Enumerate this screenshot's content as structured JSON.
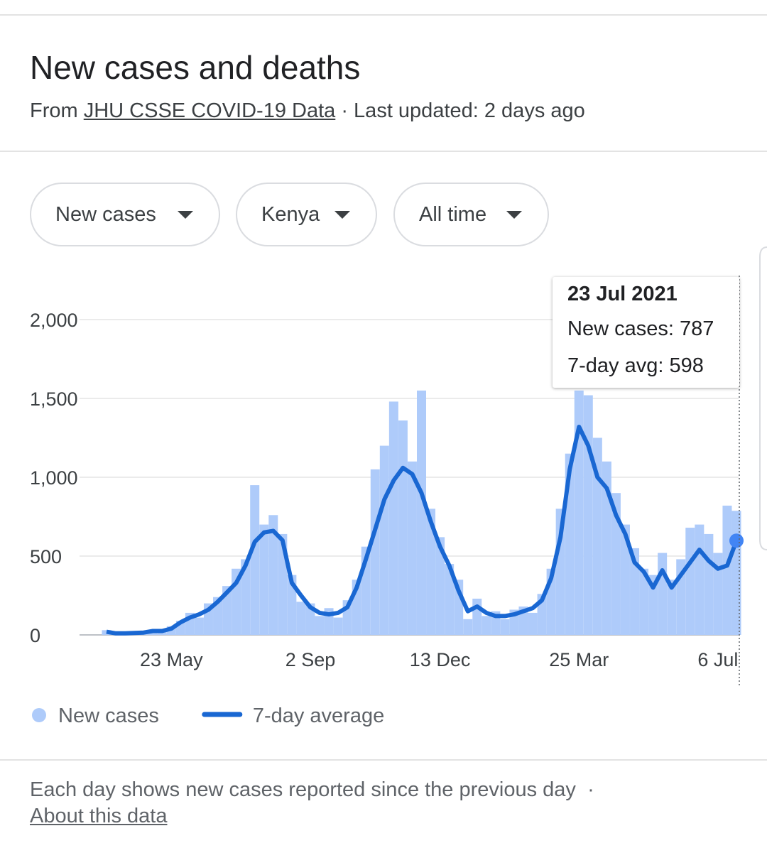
{
  "header": {
    "title": "New cases and deaths",
    "source_prefix": "From",
    "source_link": "JHU CSSE COVID-19 Data",
    "updated": "· Last updated: 2 days ago"
  },
  "filters": [
    "New cases",
    "Kenya",
    "All time"
  ],
  "chart_data": {
    "type": "bar",
    "categories": [
      null,
      null,
      null,
      null,
      null,
      null,
      null,
      "23 May",
      null,
      null,
      null,
      null,
      null,
      null,
      null,
      null,
      null,
      null,
      null,
      null,
      null,
      null,
      "2 Sep",
      null,
      null,
      null,
      null,
      null,
      null,
      null,
      null,
      null,
      null,
      null,
      null,
      null,
      "13 Dec",
      null,
      null,
      null,
      null,
      null,
      null,
      null,
      null,
      null,
      null,
      null,
      null,
      null,
      null,
      "25 Mar",
      null,
      null,
      null,
      null,
      null,
      null,
      null,
      null,
      null,
      null,
      null,
      null,
      null,
      null,
      "6 Jul",
      null,
      null
    ],
    "series": [
      {
        "name": "New cases",
        "type": "bar",
        "color": "#aecbfa",
        "values": [
          30,
          5,
          15,
          10,
          20,
          30,
          20,
          55,
          90,
          140,
          110,
          200,
          240,
          310,
          420,
          480,
          950,
          700,
          760,
          640,
          380,
          210,
          200,
          120,
          170,
          110,
          220,
          350,
          560,
          1050,
          1200,
          1480,
          1360,
          1100,
          1550,
          800,
          620,
          450,
          350,
          100,
          230,
          120,
          150,
          100,
          160,
          180,
          140,
          260,
          420,
          800,
          1150,
          1550,
          1520,
          1250,
          1100,
          900,
          700,
          550,
          420,
          380,
          520,
          350,
          480,
          680,
          700,
          640,
          520,
          820,
          787
        ]
      },
      {
        "name": "7-day average",
        "type": "line",
        "color": "#1967d2",
        "values": [
          20,
          10,
          10,
          12,
          15,
          25,
          25,
          40,
          80,
          110,
          130,
          160,
          210,
          270,
          330,
          440,
          590,
          650,
          660,
          600,
          330,
          250,
          175,
          140,
          130,
          140,
          175,
          300,
          480,
          670,
          860,
          980,
          1060,
          1020,
          900,
          720,
          560,
          440,
          280,
          150,
          180,
          140,
          120,
          120,
          130,
          150,
          170,
          220,
          360,
          620,
          1050,
          1320,
          1200,
          1000,
          930,
          760,
          640,
          460,
          400,
          300,
          410,
          300,
          380,
          460,
          540,
          470,
          420,
          440,
          598
        ]
      }
    ],
    "ylim": [
      0,
      2000
    ],
    "yticks": [
      0,
      500,
      {
        "value": 1000,
        "label": "1,000"
      },
      {
        "value": 1500,
        "label": "1,500"
      },
      {
        "value": 2000,
        "label": "2,000"
      }
    ],
    "grid": true,
    "tooltip": {
      "title": "23 Jul 2021",
      "labels": [
        "New cases:",
        "7-day avg:"
      ]
    }
  },
  "footer": {
    "note": "Each day shows new cases reported since the previous day",
    "separator": "·",
    "link": "About this data"
  }
}
